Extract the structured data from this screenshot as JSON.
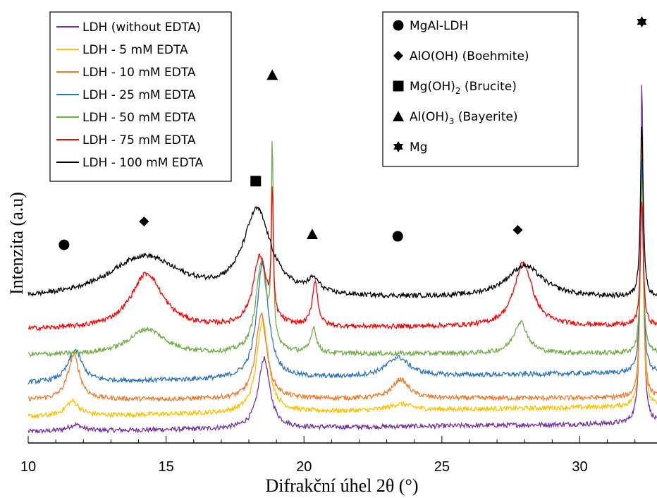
{
  "chart_data": {
    "type": "line",
    "title": "",
    "xlabel": "Difrakční úhel 2θ (°)",
    "ylabel": "Intenzita (a.u)",
    "xlim": [
      10,
      32.8
    ],
    "x_ticks": [
      "10",
      "15",
      "20",
      "25",
      "30"
    ],
    "x_tick_values": [
      10,
      15,
      20,
      25,
      30
    ],
    "y_ticks_shown": false,
    "grid": false,
    "legend_series_position": "top-left",
    "legend_phase_position": "top-right",
    "series": [
      {
        "name": "LDH (without EDTA)",
        "color": "#7030a0",
        "baseline": 0.0,
        "bg_start": 0.02,
        "bg_end": 0.06,
        "peaks": [
          [
            11.7,
            0.03,
            0.3
          ],
          [
            18.55,
            0.33,
            0.25
          ],
          [
            32.25,
            1.62,
            0.06
          ]
        ]
      },
      {
        "name": "LDH - 5 mM EDTA",
        "color": "#ffc000",
        "baseline": 0.08,
        "bg_start": 0.01,
        "bg_end": 0.06,
        "peaks": [
          [
            11.6,
            0.07,
            0.3
          ],
          [
            18.5,
            0.44,
            0.25
          ],
          [
            23.5,
            0.03,
            0.5
          ],
          [
            32.25,
            1.24,
            0.06
          ]
        ]
      },
      {
        "name": "LDH - 10 mM EDTA",
        "color": "#ed7d31",
        "baseline": 0.14,
        "bg_start": 0.03,
        "bg_end": 0.04,
        "peaks": [
          [
            11.65,
            0.21,
            0.25
          ],
          [
            18.45,
            0.4,
            0.24
          ],
          [
            23.5,
            0.09,
            0.35
          ],
          [
            32.25,
            1.23,
            0.06
          ]
        ]
      },
      {
        "name": "LDH - 25 mM EDTA",
        "color": "#2e75b6",
        "baseline": 0.24,
        "bg_start": 0.01,
        "bg_end": 0.06,
        "peaks": [
          [
            11.7,
            0.15,
            0.3
          ],
          [
            18.5,
            0.55,
            0.25
          ],
          [
            23.4,
            0.09,
            0.5
          ],
          [
            32.25,
            1.03,
            0.06
          ]
        ]
      },
      {
        "name": "LDH - 50 mM EDTA",
        "color": "#70ad47",
        "baseline": 0.38,
        "bg_start": 0.0,
        "bg_end": 0.01,
        "peaks": [
          [
            14.3,
            0.12,
            0.8
          ],
          [
            18.45,
            0.42,
            0.24
          ],
          [
            18.85,
            0.92,
            0.04
          ],
          [
            20.35,
            0.12,
            0.12
          ],
          [
            27.85,
            0.15,
            0.3
          ],
          [
            32.25,
            0.82,
            0.06
          ]
        ]
      },
      {
        "name": "LDH - 75 mM EDTA",
        "color": "#ff0000",
        "baseline": 0.5,
        "bg_start": 0.0,
        "bg_end": 0.02,
        "peaks": [
          [
            14.3,
            0.26,
            0.7
          ],
          [
            18.4,
            0.33,
            0.3
          ],
          [
            18.85,
            0.58,
            0.04
          ],
          [
            20.4,
            0.21,
            0.12
          ],
          [
            27.95,
            0.3,
            0.4
          ],
          [
            32.25,
            0.6,
            0.06
          ]
        ]
      },
      {
        "name": "LDH - 100 mM EDTA",
        "color": "#000000",
        "baseline": 0.64,
        "bg_start": 0.0,
        "bg_end": 0.01,
        "peaks": [
          [
            14.2,
            0.2,
            1.6
          ],
          [
            18.3,
            0.4,
            0.6
          ],
          [
            20.35,
            0.06,
            0.25
          ],
          [
            28.0,
            0.15,
            0.8
          ],
          [
            32.25,
            0.82,
            0.06
          ]
        ]
      }
    ],
    "phase_legend": [
      {
        "symbol": "circle",
        "label_main": "MgAl-LDH",
        "label_sub": "",
        "label_tail": ""
      },
      {
        "symbol": "diamond",
        "label_main": "AlO(OH) (Boehmite)",
        "label_sub": "",
        "label_tail": ""
      },
      {
        "symbol": "square",
        "label_main": "Mg(OH)",
        "label_sub": "2",
        "label_tail": " (Brucite)"
      },
      {
        "symbol": "triangle",
        "label_main": "Al(OH)",
        "label_sub": "3",
        "label_tail": " (Bayerite)"
      },
      {
        "symbol": "star",
        "label_main": "Mg",
        "label_sub": "",
        "label_tail": ""
      }
    ],
    "peak_markers": [
      {
        "symbol": "circle",
        "x": 11.3,
        "y": 0.9
      },
      {
        "symbol": "diamond",
        "x": 14.2,
        "y": 1.01
      },
      {
        "symbol": "square",
        "x": 18.25,
        "y": 1.2
      },
      {
        "symbol": "triangle",
        "x": 18.85,
        "y": 1.7
      },
      {
        "symbol": "triangle",
        "x": 20.3,
        "y": 0.95
      },
      {
        "symbol": "circle",
        "x": 23.4,
        "y": 0.94
      },
      {
        "symbol": "diamond",
        "x": 27.75,
        "y": 0.97
      },
      {
        "symbol": "star",
        "x": 32.25,
        "y": 1.95
      }
    ]
  }
}
